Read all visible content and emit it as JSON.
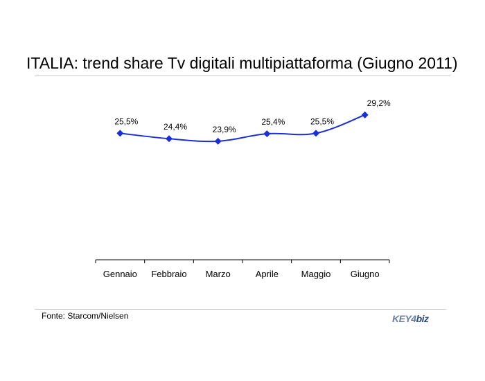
{
  "title": "ITALIA: trend share Tv digitali multipiattaforma (Giugno 2011)",
  "source": "Fonte: Starcom/Nielsen",
  "logo": {
    "part1": "KEY4",
    "part2": "biz"
  },
  "colors": {
    "series": "#1a2fd8",
    "axis": "#000000",
    "rule": "#c8c8c8"
  },
  "chart_data": {
    "type": "line",
    "categories": [
      "Gennaio",
      "Febbraio",
      "Marzo",
      "Aprile",
      "Maggio",
      "Giugno"
    ],
    "series": [
      {
        "values": [
          25.5,
          24.4,
          23.9,
          25.4,
          25.5,
          29.2
        ],
        "labels": [
          "25,5%",
          "24,4%",
          "23,9%",
          "25,4%",
          "25,5%",
          "29,2%"
        ],
        "marker": "diamond"
      }
    ],
    "xlabel": "",
    "ylabel": "",
    "ylim": [
      0,
      37
    ],
    "grid": false,
    "legend": "none"
  }
}
